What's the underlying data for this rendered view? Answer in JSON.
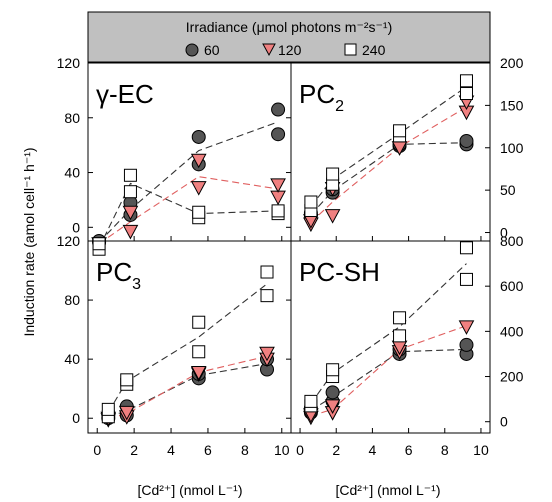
{
  "legend": {
    "title": "Irradiance (μmol photons m⁻²s⁻¹)",
    "series": [
      {
        "label": "60",
        "marker": "circle",
        "fill": "#555555"
      },
      {
        "label": "120",
        "marker": "triangle-down",
        "fill": "#f08080"
      },
      {
        "label": "240",
        "marker": "square",
        "fill": "#ffffff"
      }
    ]
  },
  "ylabel": "Induction rate (amol cell⁻¹ h⁻¹)",
  "xlabel": "[Cd²⁺] (nmol L⁻¹)",
  "colors": {
    "s60_fill": "#555555",
    "s120_fill": "#f08080",
    "s240_fill": "#ffffff",
    "header_bg": "#c0c0c0",
    "line_dark": "#333333",
    "line_red": "#e06060"
  },
  "chart_data": [
    {
      "type": "scatter",
      "panel": "γ-EC",
      "axis": "left",
      "ylim": [
        -10,
        120
      ],
      "yticks": [
        "0",
        "40",
        "80",
        "120"
      ],
      "xlim": [
        -0.5,
        10.5
      ],
      "xticks": [
        "0",
        "2",
        "4",
        "6",
        "8",
        "10"
      ],
      "series": [
        {
          "name": "60",
          "points": [
            [
              0.1,
              -11
            ],
            [
              0.1,
              -10
            ],
            [
              1.8,
              9
            ],
            [
              1.8,
              18
            ],
            [
              5.5,
              46
            ],
            [
              5.5,
              66
            ],
            [
              9.8,
              68
            ],
            [
              9.8,
              86
            ]
          ],
          "fit": [
            [
              0.1,
              -11
            ],
            [
              1.8,
              13
            ],
            [
              5.5,
              56
            ],
            [
              9.8,
              77
            ]
          ]
        },
        {
          "name": "120",
          "points": [
            [
              0.1,
              -12
            ],
            [
              1.8,
              -3
            ],
            [
              1.8,
              11
            ],
            [
              5.5,
              29
            ],
            [
              5.5,
              49
            ],
            [
              9.8,
              22
            ],
            [
              9.8,
              31
            ]
          ],
          "fit": [
            [
              0.1,
              -12
            ],
            [
              1.8,
              4
            ],
            [
              5.5,
              37
            ],
            [
              9.8,
              28
            ]
          ]
        },
        {
          "name": "240",
          "points": [
            [
              0.1,
              -16
            ],
            [
              0.1,
              -12
            ],
            [
              1.8,
              26
            ],
            [
              1.8,
              38
            ],
            [
              5.5,
              7
            ],
            [
              5.5,
              11
            ],
            [
              9.8,
              10
            ],
            [
              9.8,
              12
            ]
          ],
          "fit": [
            [
              0.1,
              -15
            ],
            [
              1.8,
              32
            ],
            [
              5.5,
              10
            ],
            [
              9.8,
              12
            ]
          ]
        }
      ]
    },
    {
      "type": "scatter",
      "panel": "PC2",
      "axis": "right",
      "ylim": [
        -10,
        200
      ],
      "yticks": [
        "0",
        "50",
        "100",
        "150",
        "200"
      ],
      "xlim": [
        -0.5,
        10.5
      ],
      "xticks": [
        "0",
        "2",
        "4",
        "6",
        "8",
        "10"
      ],
      "series": [
        {
          "name": "60",
          "points": [
            [
              0.6,
              20
            ],
            [
              0.6,
              23
            ],
            [
              1.8,
              47
            ],
            [
              1.8,
              51
            ],
            [
              5.5,
              102
            ],
            [
              5.5,
              104
            ],
            [
              9.2,
              104
            ],
            [
              9.2,
              108
            ]
          ],
          "fit": [
            [
              0.6,
              21
            ],
            [
              1.8,
              49
            ],
            [
              5.5,
              104
            ],
            [
              9.2,
              106
            ]
          ]
        },
        {
          "name": "120",
          "points": [
            [
              0.6,
              10
            ],
            [
              0.6,
              14
            ],
            [
              1.8,
              20
            ],
            [
              1.8,
              52
            ],
            [
              5.5,
              100
            ],
            [
              9.2,
              142
            ],
            [
              9.2,
              154
            ]
          ],
          "fit": [
            [
              0.6,
              12
            ],
            [
              1.8,
              36
            ],
            [
              5.5,
              101
            ],
            [
              9.2,
              148
            ]
          ]
        },
        {
          "name": "240",
          "points": [
            [
              0.6,
              26
            ],
            [
              0.6,
              36
            ],
            [
              1.8,
              57
            ],
            [
              1.8,
              69
            ],
            [
              5.5,
              114
            ],
            [
              5.5,
              120
            ],
            [
              9.2,
              164
            ],
            [
              9.2,
              179
            ]
          ],
          "fit": [
            [
              0.6,
              31
            ],
            [
              1.8,
              63
            ],
            [
              5.5,
              117
            ],
            [
              9.2,
              172
            ]
          ]
        }
      ]
    },
    {
      "type": "scatter",
      "panel": "PC3",
      "axis": "left",
      "ylim": [
        -10,
        120
      ],
      "yticks": [
        "0",
        "40",
        "80",
        "120"
      ],
      "xlim": [
        -0.5,
        10.5
      ],
      "xticks": [
        "0",
        "2",
        "4",
        "6",
        "8",
        "10"
      ],
      "series": [
        {
          "name": "60",
          "points": [
            [
              0.6,
              0
            ],
            [
              0.6,
              2
            ],
            [
              1.6,
              2
            ],
            [
              1.6,
              8
            ],
            [
              5.5,
              27
            ],
            [
              5.5,
              30
            ],
            [
              9.2,
              33
            ],
            [
              9.2,
              40
            ]
          ],
          "fit": [
            [
              0.6,
              1
            ],
            [
              1.6,
              5
            ],
            [
              5.5,
              29
            ],
            [
              9.2,
              37
            ]
          ]
        },
        {
          "name": "120",
          "points": [
            [
              0.6,
              -1
            ],
            [
              0.6,
              0
            ],
            [
              1.6,
              1
            ],
            [
              1.6,
              4
            ],
            [
              5.5,
              30
            ],
            [
              5.5,
              31
            ],
            [
              9.2,
              40
            ],
            [
              9.2,
              44
            ]
          ],
          "fit": [
            [
              0.6,
              0
            ],
            [
              1.6,
              3
            ],
            [
              5.5,
              31
            ],
            [
              9.2,
              42
            ]
          ]
        },
        {
          "name": "240",
          "points": [
            [
              0.6,
              1
            ],
            [
              0.6,
              6
            ],
            [
              1.6,
              23
            ],
            [
              1.6,
              26
            ],
            [
              5.5,
              45
            ],
            [
              5.5,
              65
            ],
            [
              9.2,
              83
            ],
            [
              9.2,
              99
            ]
          ],
          "fit": [
            [
              0.6,
              4
            ],
            [
              1.6,
              25
            ],
            [
              5.5,
              55
            ],
            [
              9.2,
              91
            ]
          ]
        }
      ]
    },
    {
      "type": "scatter",
      "panel": "PC-SH",
      "axis": "right",
      "ylim": [
        -50,
        800
      ],
      "yticks": [
        "0",
        "200",
        "400",
        "600",
        "800"
      ],
      "xlim": [
        -0.5,
        10.5
      ],
      "xticks": [
        "0",
        "2",
        "4",
        "6",
        "8",
        "10"
      ],
      "series": [
        {
          "name": "60",
          "points": [
            [
              0.6,
              40
            ],
            [
              0.6,
              60
            ],
            [
              1.8,
              90
            ],
            [
              1.8,
              130
            ],
            [
              5.5,
              300
            ],
            [
              5.5,
              320
            ],
            [
              9.2,
              300
            ],
            [
              9.2,
              340
            ]
          ],
          "fit": [
            [
              0.6,
              50
            ],
            [
              1.8,
              110
            ],
            [
              5.5,
              310
            ],
            [
              9.2,
              320
            ]
          ]
        },
        {
          "name": "120",
          "points": [
            [
              0.6,
              20
            ],
            [
              0.6,
              30
            ],
            [
              1.8,
              40
            ],
            [
              1.8,
              70
            ],
            [
              5.5,
              310
            ],
            [
              5.5,
              330
            ],
            [
              9.2,
              420
            ]
          ],
          "fit": [
            [
              0.6,
              25
            ],
            [
              1.8,
              55
            ],
            [
              5.5,
              320
            ],
            [
              9.2,
              425
            ]
          ]
        },
        {
          "name": "240",
          "points": [
            [
              0.6,
              70
            ],
            [
              0.6,
              90
            ],
            [
              1.8,
              200
            ],
            [
              1.8,
              230
            ],
            [
              5.5,
              380
            ],
            [
              5.5,
              460
            ],
            [
              9.2,
              630
            ],
            [
              9.2,
              770
            ]
          ],
          "fit": [
            [
              0.6,
              80
            ],
            [
              1.8,
              215
            ],
            [
              5.5,
              420
            ],
            [
              9.2,
              700
            ]
          ]
        }
      ]
    }
  ]
}
